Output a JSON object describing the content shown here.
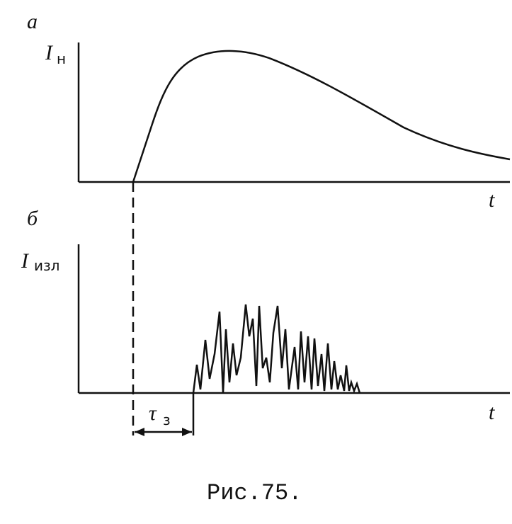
{
  "panels": [
    {
      "label": "а",
      "y_axis": {
        "symbol": "I",
        "subscript": "н"
      },
      "x_axis": "t"
    },
    {
      "label": "б",
      "y_axis": {
        "symbol": "I",
        "subscript": "изл"
      },
      "x_axis": "t"
    }
  ],
  "delay": {
    "symbol": "τ",
    "subscript": "з"
  },
  "caption": "Рис.75."
}
